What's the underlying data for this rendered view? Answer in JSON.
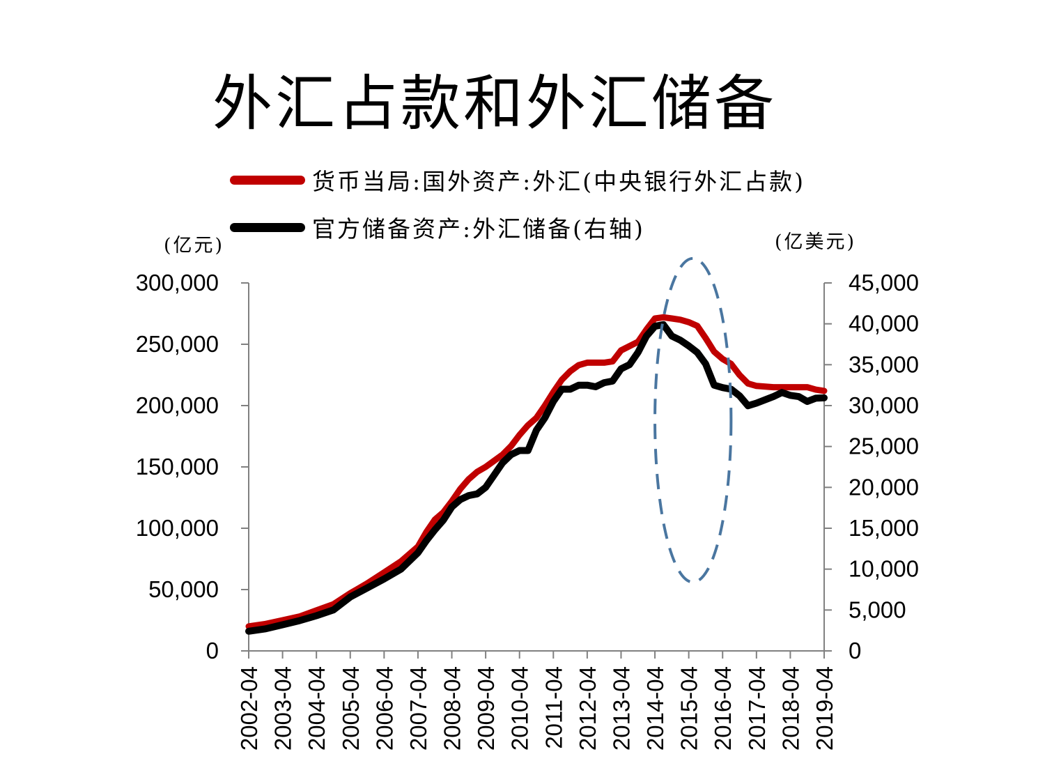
{
  "slide": {
    "title": "外汇占款和外汇储备"
  },
  "legend": {
    "series1_label": "货币当局:国外资产:外汇(中央银行外汇占款)",
    "series2_label": "官方储备资产:外汇储备(右轴)"
  },
  "units": {
    "left": "(亿元)",
    "right": "(亿美元)"
  },
  "colors": {
    "series1": "#c00000",
    "series2": "#000000",
    "annotation": "#4a76a0",
    "axis": "#808080"
  },
  "chart_data": {
    "type": "line",
    "x_tick_labels": [
      "2002-04",
      "2003-04",
      "2004-04",
      "2005-04",
      "2006-04",
      "2007-04",
      "2008-04",
      "2009-04",
      "2010-04",
      "2011-04",
      "2012-04",
      "2013-04",
      "2014-04",
      "2015-04",
      "2016-04",
      "2017-04",
      "2018-04",
      "2019-04"
    ],
    "y_left": {
      "range": [
        0,
        300000
      ],
      "ticks": [
        0,
        50000,
        100000,
        150000,
        200000,
        250000,
        300000
      ],
      "tick_labels": [
        "0",
        "50,000",
        "100,000",
        "150,000",
        "200,000",
        "250,000",
        "300,000"
      ]
    },
    "y_right": {
      "range": [
        0,
        45000
      ],
      "ticks": [
        0,
        5000,
        10000,
        15000,
        20000,
        25000,
        30000,
        35000,
        40000,
        45000
      ],
      "tick_labels": [
        "0",
        "5,000",
        "10,000",
        "15,000",
        "20,000",
        "25,000",
        "30,000",
        "35,000",
        "40,000",
        "45,000"
      ]
    },
    "series": [
      {
        "name": "货币当局:国外资产:外汇(中央银行外汇占款)",
        "axis": "left",
        "points": [
          [
            "2002-04",
            20000
          ],
          [
            "2002-10",
            22000
          ],
          [
            "2003-04",
            25000
          ],
          [
            "2003-10",
            28000
          ],
          [
            "2004-04",
            33000
          ],
          [
            "2004-10",
            38000
          ],
          [
            "2005-04",
            47000
          ],
          [
            "2005-10",
            55000
          ],
          [
            "2006-04",
            64000
          ],
          [
            "2006-10",
            73000
          ],
          [
            "2007-04",
            85000
          ],
          [
            "2007-07",
            97000
          ],
          [
            "2007-10",
            107000
          ],
          [
            "2008-01",
            113000
          ],
          [
            "2008-04",
            122000
          ],
          [
            "2008-07",
            132000
          ],
          [
            "2008-10",
            140000
          ],
          [
            "2009-01",
            146000
          ],
          [
            "2009-04",
            150000
          ],
          [
            "2009-07",
            155000
          ],
          [
            "2009-10",
            160000
          ],
          [
            "2010-01",
            167000
          ],
          [
            "2010-04",
            176000
          ],
          [
            "2010-07",
            184000
          ],
          [
            "2010-10",
            190000
          ],
          [
            "2011-01",
            200000
          ],
          [
            "2011-04",
            211000
          ],
          [
            "2011-07",
            221000
          ],
          [
            "2011-10",
            228000
          ],
          [
            "2012-01",
            233000
          ],
          [
            "2012-04",
            235000
          ],
          [
            "2012-10",
            235000
          ],
          [
            "2013-01",
            236000
          ],
          [
            "2013-04",
            245000
          ],
          [
            "2013-10",
            252000
          ],
          [
            "2014-01",
            262000
          ],
          [
            "2014-04",
            271000
          ],
          [
            "2014-07",
            272000
          ],
          [
            "2014-10",
            271000
          ],
          [
            "2015-01",
            270000
          ],
          [
            "2015-04",
            268000
          ],
          [
            "2015-07",
            265000
          ],
          [
            "2015-10",
            255000
          ],
          [
            "2016-01",
            244000
          ],
          [
            "2016-04",
            238000
          ],
          [
            "2016-07",
            234000
          ],
          [
            "2016-10",
            225000
          ],
          [
            "2017-01",
            218000
          ],
          [
            "2017-04",
            216000
          ],
          [
            "2017-10",
            215000
          ],
          [
            "2018-04",
            215000
          ],
          [
            "2018-10",
            215000
          ],
          [
            "2019-01",
            213000
          ],
          [
            "2019-04",
            212000
          ]
        ]
      },
      {
        "name": "官方储备资产:外汇储备(右轴)",
        "axis": "right",
        "points": [
          [
            "2002-04",
            2400
          ],
          [
            "2002-10",
            2700
          ],
          [
            "2003-04",
            3200
          ],
          [
            "2003-10",
            3700
          ],
          [
            "2004-04",
            4300
          ],
          [
            "2004-10",
            5000
          ],
          [
            "2005-04",
            6600
          ],
          [
            "2005-10",
            7700
          ],
          [
            "2006-04",
            8800
          ],
          [
            "2006-10",
            10000
          ],
          [
            "2007-04",
            12000
          ],
          [
            "2007-07",
            13500
          ],
          [
            "2007-10",
            14800
          ],
          [
            "2008-01",
            16000
          ],
          [
            "2008-04",
            17600
          ],
          [
            "2008-07",
            18500
          ],
          [
            "2008-10",
            19000
          ],
          [
            "2009-01",
            19200
          ],
          [
            "2009-04",
            20000
          ],
          [
            "2009-07",
            21500
          ],
          [
            "2009-10",
            23000
          ],
          [
            "2010-01",
            24000
          ],
          [
            "2010-04",
            24500
          ],
          [
            "2010-07",
            24500
          ],
          [
            "2010-10",
            27000
          ],
          [
            "2011-01",
            28500
          ],
          [
            "2011-04",
            30500
          ],
          [
            "2011-07",
            32000
          ],
          [
            "2011-10",
            32000
          ],
          [
            "2012-01",
            32500
          ],
          [
            "2012-04",
            32500
          ],
          [
            "2012-07",
            32300
          ],
          [
            "2012-10",
            32800
          ],
          [
            "2013-01",
            33000
          ],
          [
            "2013-04",
            34500
          ],
          [
            "2013-07",
            35000
          ],
          [
            "2013-10",
            36500
          ],
          [
            "2014-01",
            38500
          ],
          [
            "2014-04",
            39700
          ],
          [
            "2014-07",
            39900
          ],
          [
            "2014-10",
            38500
          ],
          [
            "2015-01",
            38000
          ],
          [
            "2015-04",
            37300
          ],
          [
            "2015-07",
            36500
          ],
          [
            "2015-10",
            35100
          ],
          [
            "2016-01",
            32500
          ],
          [
            "2016-04",
            32200
          ],
          [
            "2016-07",
            32000
          ],
          [
            "2016-10",
            31200
          ],
          [
            "2017-01",
            29980
          ],
          [
            "2017-04",
            30300
          ],
          [
            "2017-10",
            31100
          ],
          [
            "2018-01",
            31600
          ],
          [
            "2018-04",
            31250
          ],
          [
            "2018-07",
            31100
          ],
          [
            "2018-10",
            30500
          ],
          [
            "2019-01",
            30900
          ],
          [
            "2019-04",
            30950
          ]
        ]
      }
    ],
    "annotation": {
      "type": "dashed-ellipse",
      "x_range": [
        "2014-04",
        "2016-07"
      ],
      "y_left_range": [
        56000,
        320000
      ]
    }
  }
}
